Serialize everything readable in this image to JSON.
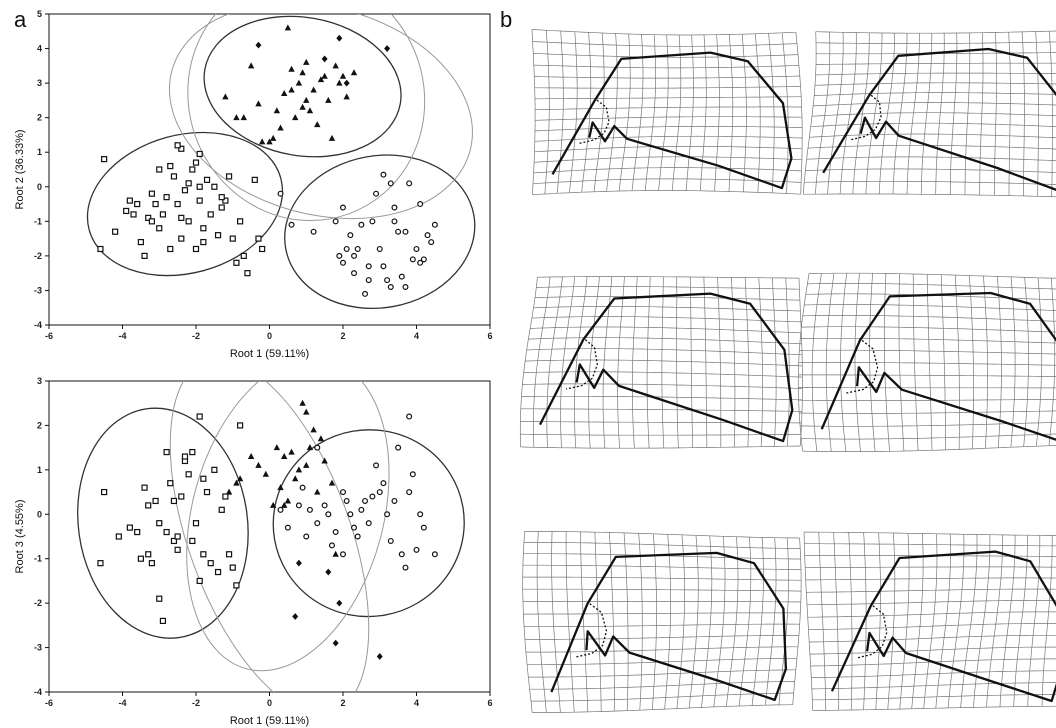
{
  "panel_labels": {
    "a": "a",
    "b": "b"
  },
  "colors": {
    "ink": "#111111",
    "ellipse_dark": "#333333",
    "ellipse_light": "#999999",
    "grid": "#777777"
  },
  "chart_data": [
    {
      "type": "scatter",
      "xlabel": "Root 1 (59.11%)",
      "ylabel": "Root 2 (36.33%)",
      "xlim": [
        -6,
        6
      ],
      "ylim": [
        -4,
        5
      ],
      "xticks": [
        -6,
        -4,
        -2,
        0,
        2,
        4,
        6
      ],
      "yticks": [
        -4,
        -3,
        -2,
        -1,
        0,
        1,
        2,
        3,
        4,
        5
      ],
      "grid": false,
      "series": [
        {
          "marker": "square",
          "points": [
            [
              -4.6,
              -1.8
            ],
            [
              -4.5,
              0.8
            ],
            [
              -4.2,
              -1.3
            ],
            [
              -3.9,
              -0.7
            ],
            [
              -3.8,
              -0.4
            ],
            [
              -3.7,
              -0.8
            ],
            [
              -3.6,
              -0.5
            ],
            [
              -3.5,
              -1.6
            ],
            [
              -3.4,
              -2.0
            ],
            [
              -3.3,
              -0.9
            ],
            [
              -3.2,
              -0.2
            ],
            [
              -3.1,
              -0.5
            ],
            [
              -3.0,
              0.5
            ],
            [
              -3.0,
              -1.2
            ],
            [
              -2.9,
              -0.8
            ],
            [
              -2.8,
              -0.3
            ],
            [
              -2.7,
              -1.8
            ],
            [
              -2.6,
              0.3
            ],
            [
              -2.5,
              -0.5
            ],
            [
              -2.4,
              1.1
            ],
            [
              -2.4,
              -1.5
            ],
            [
              -2.3,
              -0.1
            ],
            [
              -2.2,
              -1.0
            ],
            [
              -2.1,
              0.5
            ],
            [
              -2.0,
              -1.8
            ],
            [
              -2.0,
              0.7
            ],
            [
              -1.9,
              -0.4
            ],
            [
              -1.9,
              0.95
            ],
            [
              -1.8,
              -1.2
            ],
            [
              -1.7,
              0.2
            ],
            [
              -1.6,
              -0.8
            ],
            [
              -1.5,
              0.0
            ],
            [
              -1.4,
              -1.4
            ],
            [
              -1.3,
              -0.6
            ],
            [
              -1.2,
              -0.4
            ],
            [
              -1.1,
              0.3
            ],
            [
              -1.0,
              -1.5
            ],
            [
              -0.9,
              -2.2
            ],
            [
              -0.8,
              -1.0
            ],
            [
              -0.7,
              -2.0
            ],
            [
              -0.6,
              -2.5
            ],
            [
              -0.4,
              0.2
            ],
            [
              -0.3,
              -1.5
            ],
            [
              -0.2,
              -1.8
            ],
            [
              -2.7,
              0.6
            ],
            [
              -2.2,
              0.1
            ],
            [
              -3.2,
              -1.0
            ],
            [
              -1.8,
              -1.6
            ],
            [
              -2.5,
              1.2
            ],
            [
              -2.4,
              -0.9
            ],
            [
              -1.3,
              -0.3
            ],
            [
              -1.9,
              0.0
            ]
          ]
        },
        {
          "marker": "triangle",
          "points": [
            [
              -1.2,
              2.6
            ],
            [
              -0.9,
              2.0
            ],
            [
              -0.7,
              2.0
            ],
            [
              -0.5,
              3.5
            ],
            [
              -0.3,
              2.4
            ],
            [
              -0.2,
              1.3
            ],
            [
              0.0,
              1.3
            ],
            [
              0.1,
              1.4
            ],
            [
              0.2,
              2.2
            ],
            [
              0.3,
              1.7
            ],
            [
              0.4,
              2.7
            ],
            [
              0.5,
              4.6
            ],
            [
              0.6,
              3.4
            ],
            [
              0.6,
              2.8
            ],
            [
              0.7,
              2.0
            ],
            [
              0.8,
              3.0
            ],
            [
              0.9,
              3.3
            ],
            [
              1.0,
              2.5
            ],
            [
              1.1,
              2.2
            ],
            [
              1.2,
              2.8
            ],
            [
              1.3,
              1.8
            ],
            [
              1.4,
              3.1
            ],
            [
              1.5,
              3.2
            ],
            [
              1.6,
              2.5
            ],
            [
              1.8,
              3.5
            ],
            [
              1.9,
              3.0
            ],
            [
              2.1,
              2.6
            ],
            [
              2.3,
              3.3
            ],
            [
              0.9,
              2.3
            ],
            [
              1.7,
              1.4
            ],
            [
              2.0,
              3.2
            ],
            [
              1.0,
              3.6
            ]
          ]
        },
        {
          "marker": "diamond",
          "points": [
            [
              -0.3,
              4.1
            ],
            [
              1.5,
              3.7
            ],
            [
              1.9,
              4.3
            ],
            [
              2.1,
              3.0
            ],
            [
              3.2,
              4.0
            ]
          ]
        },
        {
          "marker": "circle",
          "points": [
            [
              0.3,
              -0.2
            ],
            [
              0.6,
              -1.1
            ],
            [
              1.2,
              -1.3
            ],
            [
              1.8,
              -1.0
            ],
            [
              1.9,
              -2.0
            ],
            [
              2.0,
              -2.2
            ],
            [
              2.1,
              -1.8
            ],
            [
              2.2,
              -1.4
            ],
            [
              2.3,
              -2.5
            ],
            [
              2.4,
              -1.8
            ],
            [
              2.5,
              -1.1
            ],
            [
              2.6,
              -3.1
            ],
            [
              2.7,
              -2.7
            ],
            [
              2.8,
              -1.0
            ],
            [
              2.9,
              -0.2
            ],
            [
              3.0,
              -1.8
            ],
            [
              3.1,
              -2.3
            ],
            [
              3.2,
              -2.7
            ],
            [
              3.3,
              -2.9
            ],
            [
              3.4,
              -0.6
            ],
            [
              3.5,
              -1.3
            ],
            [
              3.6,
              -2.6
            ],
            [
              3.7,
              -1.3
            ],
            [
              3.8,
              0.1
            ],
            [
              3.9,
              -2.1
            ],
            [
              4.0,
              -1.8
            ],
            [
              4.1,
              -2.2
            ],
            [
              4.3,
              -1.4
            ],
            [
              4.4,
              -1.6
            ],
            [
              4.5,
              -1.1
            ],
            [
              3.1,
              0.35
            ],
            [
              3.4,
              -1.0
            ],
            [
              4.1,
              -0.5
            ],
            [
              3.7,
              -2.9
            ],
            [
              2.0,
              -0.6
            ],
            [
              2.7,
              -2.3
            ],
            [
              3.3,
              0.1
            ],
            [
              4.2,
              -2.1
            ],
            [
              2.3,
              -2.0
            ]
          ]
        }
      ]
    },
    {
      "type": "scatter",
      "xlabel": "Root 1 (59.11%)",
      "ylabel": "Root 3 (4.55%)",
      "xlim": [
        -6,
        6
      ],
      "ylim": [
        -4,
        3
      ],
      "xticks": [
        -6,
        -4,
        -2,
        0,
        2,
        4,
        6
      ],
      "yticks": [
        -4,
        -3,
        -2,
        -1,
        0,
        1,
        2,
        3
      ],
      "grid": false,
      "series": [
        {
          "marker": "square",
          "points": [
            [
              -4.6,
              -1.1
            ],
            [
              -4.5,
              0.5
            ],
            [
              -4.1,
              -0.5
            ],
            [
              -3.8,
              -0.3
            ],
            [
              -3.6,
              -0.4
            ],
            [
              -3.5,
              -1.0
            ],
            [
              -3.4,
              0.6
            ],
            [
              -3.3,
              -0.9
            ],
            [
              -3.2,
              -1.1
            ],
            [
              -3.1,
              0.3
            ],
            [
              -3.0,
              -0.2
            ],
            [
              -3.0,
              -1.9
            ],
            [
              -2.9,
              -2.4
            ],
            [
              -2.8,
              1.4
            ],
            [
              -2.7,
              0.7
            ],
            [
              -2.6,
              -0.6
            ],
            [
              -2.5,
              -0.8
            ],
            [
              -2.4,
              0.4
            ],
            [
              -2.3,
              1.2
            ],
            [
              -2.2,
              0.9
            ],
            [
              -2.1,
              1.4
            ],
            [
              -2.0,
              -0.2
            ],
            [
              -1.9,
              -1.5
            ],
            [
              -1.8,
              -0.9
            ],
            [
              -1.7,
              0.5
            ],
            [
              -1.6,
              -1.1
            ],
            [
              -1.5,
              1.0
            ],
            [
              -1.4,
              -1.3
            ],
            [
              -1.3,
              0.1
            ],
            [
              -1.2,
              0.4
            ],
            [
              -1.1,
              -0.9
            ],
            [
              -1.0,
              -1.2
            ],
            [
              -0.9,
              -1.6
            ],
            [
              -0.8,
              2.0
            ],
            [
              -1.9,
              2.2
            ],
            [
              -2.3,
              1.3
            ],
            [
              -2.6,
              0.3
            ],
            [
              -3.3,
              0.2
            ],
            [
              -2.1,
              -0.6
            ],
            [
              -2.8,
              -0.4
            ],
            [
              -1.8,
              0.8
            ],
            [
              -2.5,
              -0.5
            ]
          ]
        },
        {
          "marker": "triangle",
          "points": [
            [
              -1.1,
              0.5
            ],
            [
              -0.9,
              0.7
            ],
            [
              -0.8,
              0.8
            ],
            [
              -0.5,
              1.3
            ],
            [
              -0.3,
              1.1
            ],
            [
              -0.1,
              0.9
            ],
            [
              0.1,
              0.2
            ],
            [
              0.3,
              0.6
            ],
            [
              0.4,
              1.3
            ],
            [
              0.5,
              0.3
            ],
            [
              0.6,
              1.4
            ],
            [
              0.7,
              0.8
            ],
            [
              0.8,
              1.0
            ],
            [
              0.9,
              2.5
            ],
            [
              1.0,
              2.3
            ],
            [
              1.1,
              1.5
            ],
            [
              1.3,
              0.5
            ],
            [
              1.5,
              1.2
            ],
            [
              1.7,
              0.7
            ],
            [
              0.2,
              1.5
            ],
            [
              0.4,
              0.2
            ],
            [
              1.0,
              1.1
            ],
            [
              1.2,
              1.9
            ],
            [
              1.4,
              1.7
            ],
            [
              1.8,
              -0.9
            ]
          ]
        },
        {
          "marker": "diamond",
          "points": [
            [
              0.8,
              -1.1
            ],
            [
              0.7,
              -2.3
            ],
            [
              1.6,
              -1.3
            ],
            [
              1.9,
              -2.0
            ],
            [
              1.8,
              -2.9
            ],
            [
              3.0,
              -3.2
            ]
          ]
        },
        {
          "marker": "circle",
          "points": [
            [
              0.3,
              0.1
            ],
            [
              0.5,
              -0.3
            ],
            [
              0.8,
              0.2
            ],
            [
              1.0,
              -0.5
            ],
            [
              1.1,
              0.1
            ],
            [
              1.3,
              -0.2
            ],
            [
              1.5,
              0.2
            ],
            [
              1.6,
              0.0
            ],
            [
              1.7,
              -0.7
            ],
            [
              1.8,
              -0.4
            ],
            [
              2.0,
              -0.9
            ],
            [
              2.1,
              0.3
            ],
            [
              2.2,
              0.0
            ],
            [
              2.3,
              -0.3
            ],
            [
              2.4,
              -0.5
            ],
            [
              2.5,
              0.1
            ],
            [
              2.6,
              0.3
            ],
            [
              2.7,
              -0.2
            ],
            [
              2.8,
              0.4
            ],
            [
              3.0,
              0.5
            ],
            [
              3.1,
              0.7
            ],
            [
              3.2,
              0.0
            ],
            [
              3.3,
              -0.6
            ],
            [
              3.4,
              0.3
            ],
            [
              3.5,
              1.5
            ],
            [
              3.6,
              -0.9
            ],
            [
              3.7,
              -1.2
            ],
            [
              3.8,
              0.5
            ],
            [
              3.9,
              0.9
            ],
            [
              4.0,
              -0.8
            ],
            [
              4.1,
              0.0
            ],
            [
              4.2,
              -0.3
            ],
            [
              4.5,
              -0.9
            ],
            [
              3.8,
              2.2
            ],
            [
              1.3,
              1.5
            ],
            [
              2.9,
              1.1
            ],
            [
              0.9,
              0.6
            ],
            [
              2.0,
              0.5
            ]
          ]
        }
      ]
    }
  ]
}
